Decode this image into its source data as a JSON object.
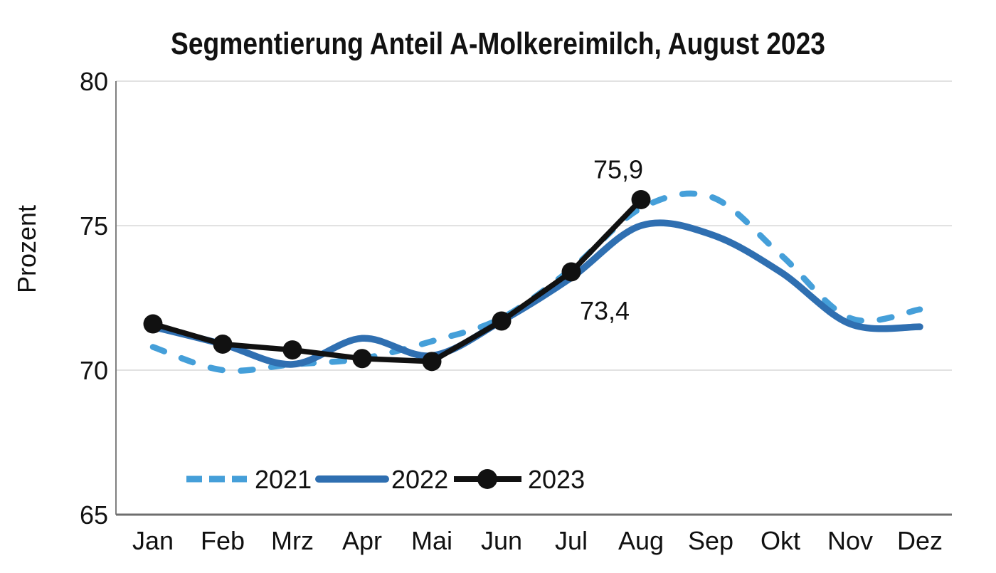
{
  "chart_data": {
    "type": "line",
    "title": "Segmentierung Anteil A-Molkereimilch, August 2023",
    "ylabel": "Prozent",
    "xlabel": "",
    "ylim": [
      65,
      80
    ],
    "yticks": [
      "80",
      "75",
      "70",
      "65"
    ],
    "ytick_values": [
      80,
      75,
      70,
      65
    ],
    "grid": "horizontal",
    "legend_position": "bottom-inside",
    "categories": [
      "Jan",
      "Feb",
      "Mrz",
      "Apr",
      "Mai",
      "Jun",
      "Jul",
      "Aug",
      "Sep",
      "Okt",
      "Nov",
      "Dez"
    ],
    "series": [
      {
        "name": "2021",
        "style": "dashed",
        "color": "#459fd9",
        "values": [
          70.8,
          70.0,
          70.2,
          70.4,
          71.0,
          71.8,
          73.5,
          75.6,
          76.0,
          74.0,
          71.8,
          72.1
        ]
      },
      {
        "name": "2022",
        "style": "solid",
        "color": "#2f6fb1",
        "values": [
          71.5,
          70.9,
          70.2,
          71.1,
          70.5,
          71.7,
          73.2,
          75.0,
          74.7,
          73.4,
          71.6,
          71.5
        ]
      },
      {
        "name": "2023",
        "style": "solid-markers",
        "color": "#111111",
        "values": [
          71.6,
          70.9,
          70.7,
          70.4,
          70.3,
          71.7,
          73.4,
          75.9,
          null,
          null,
          null,
          null
        ]
      }
    ],
    "annotations": [
      {
        "label": "75,9",
        "series": "2023",
        "category": "Aug",
        "placement": "above-left"
      },
      {
        "label": "73,4",
        "series": "2023",
        "category": "Jul",
        "placement": "below-right"
      }
    ],
    "colors": {
      "gridline": "#d9d9d9",
      "axis": "#757575",
      "text": "#111111"
    }
  }
}
